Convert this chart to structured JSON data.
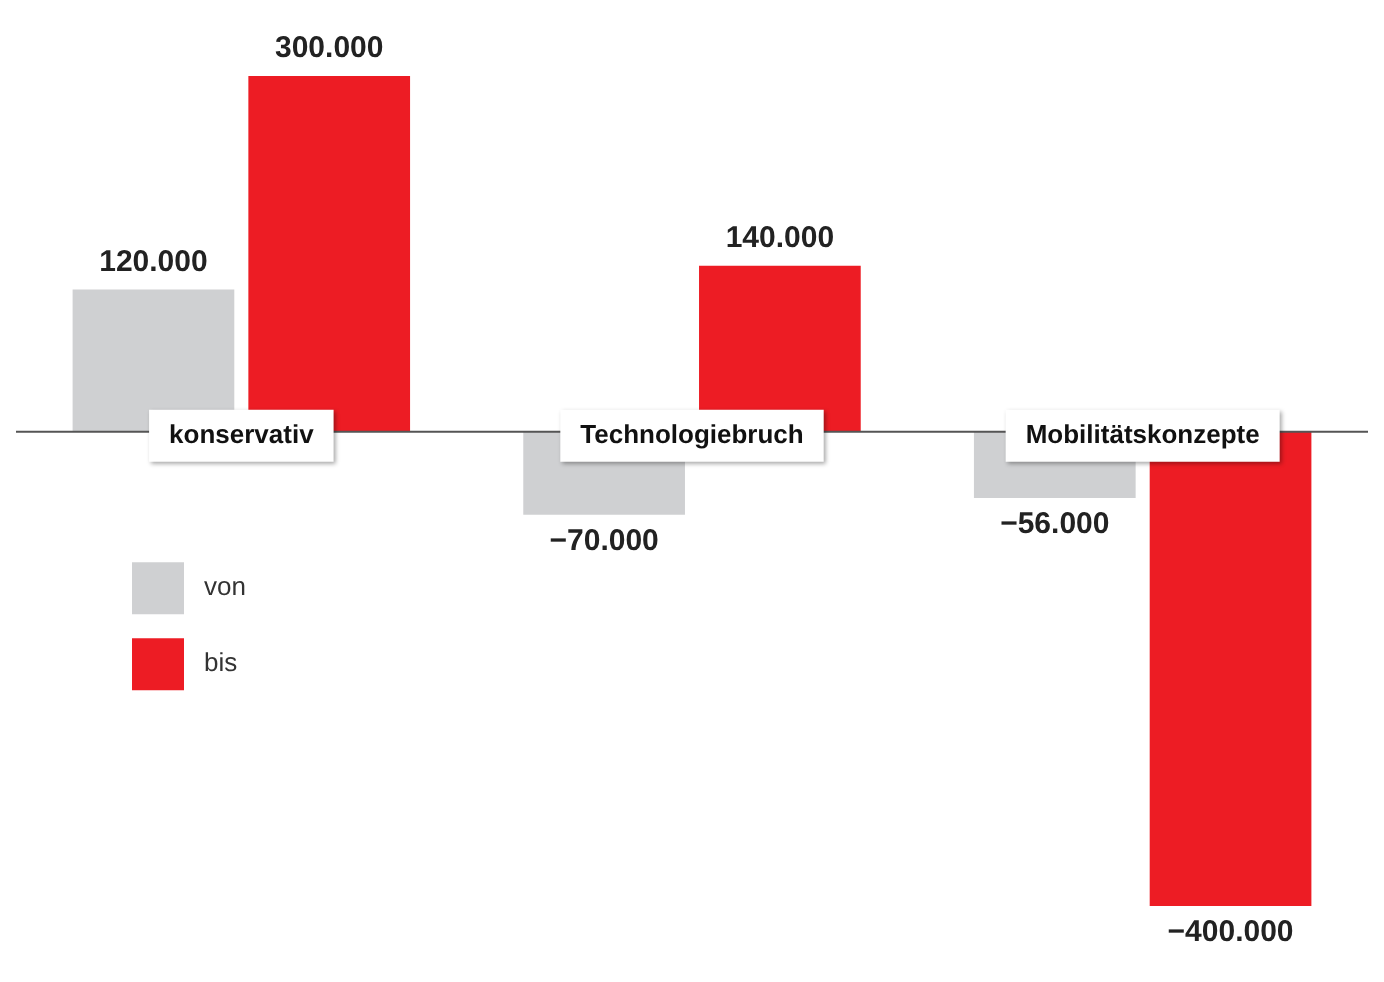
{
  "chart_data": {
    "type": "bar",
    "categories": [
      "konservativ",
      "Technologiebruch",
      "Mobilitätskonzepte"
    ],
    "series": [
      {
        "name": "von",
        "color": "#cfd0d2",
        "values": [
          120000,
          -70000,
          -56000
        ],
        "value_labels": [
          "120.000",
          "−70.000",
          "−56.000"
        ]
      },
      {
        "name": "bis",
        "color": "#ed1c24",
        "values": [
          300000,
          140000,
          -400000
        ],
        "value_labels": [
          "300.000",
          "140.000",
          "−400.000"
        ]
      }
    ],
    "legend": "left"
  }
}
